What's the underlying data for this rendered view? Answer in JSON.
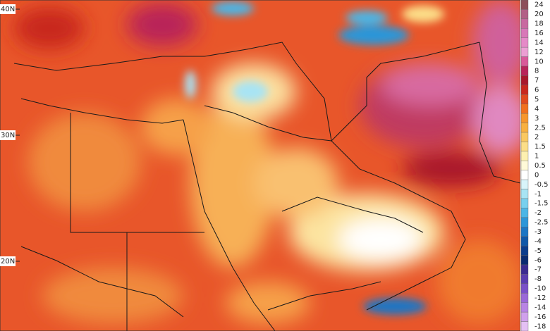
{
  "map": {
    "lat_labels": [
      "40N",
      "30N",
      "20N"
    ],
    "legend": {
      "items": [
        {
          "value": 24,
          "color": "#8c4f5a"
        },
        {
          "value": 20,
          "color": "#b25f86"
        },
        {
          "value": 18,
          "color": "#c86aa0"
        },
        {
          "value": 16,
          "color": "#d878b8"
        },
        {
          "value": 14,
          "color": "#e58ac8"
        },
        {
          "value": 12,
          "color": "#ec9fd4"
        },
        {
          "value": 10,
          "color": "#d9599a"
        },
        {
          "value": 8,
          "color": "#b8245a"
        },
        {
          "value": 7,
          "color": "#a8182c"
        },
        {
          "value": 6,
          "color": "#c8281e"
        },
        {
          "value": 5,
          "color": "#e04a1e"
        },
        {
          "value": 4,
          "color": "#f0701e"
        },
        {
          "value": 3,
          "color": "#f6962c"
        },
        {
          "value": 2.5,
          "color": "#f8b040"
        },
        {
          "value": 2,
          "color": "#fac860"
        },
        {
          "value": 1.5,
          "color": "#fcde88"
        },
        {
          "value": 1,
          "color": "#fdf0b0"
        },
        {
          "value": 0.5,
          "color": "#fffad8"
        },
        {
          "value": 0,
          "color": "#ffffff"
        },
        {
          "value": -0.5,
          "color": "#d8f4fa"
        },
        {
          "value": -1,
          "color": "#a8e4f4"
        },
        {
          "value": -1.5,
          "color": "#78d0ee"
        },
        {
          "value": -2,
          "color": "#4cb6e6"
        },
        {
          "value": -2.5,
          "color": "#2c96d8"
        },
        {
          "value": -3,
          "color": "#1c76c4"
        },
        {
          "value": -4,
          "color": "#1058a8"
        },
        {
          "value": -5,
          "color": "#0a3c8c"
        },
        {
          "value": -6,
          "color": "#082a70"
        },
        {
          "value": -7,
          "color": "#3a2a90"
        },
        {
          "value": -8,
          "color": "#5a3cb0"
        },
        {
          "value": -10,
          "color": "#7a50c8"
        },
        {
          "value": -12,
          "color": "#9a68d8"
        },
        {
          "value": -14,
          "color": "#b884e4"
        },
        {
          "value": -16,
          "color": "#d0a0ec"
        },
        {
          "value": -18,
          "color": "#e4c0f4"
        }
      ]
    }
  }
}
